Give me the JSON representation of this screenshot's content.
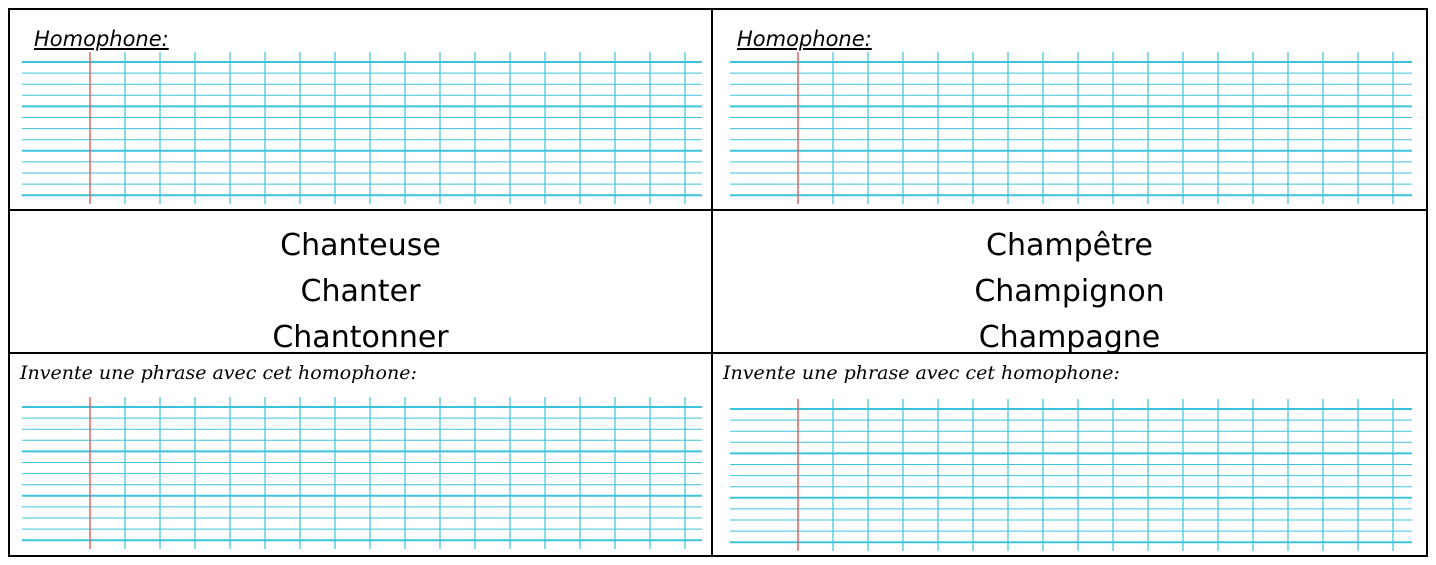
{
  "left_column": {
    "homophone_label": "Homophone:",
    "words": [
      "Chanteuse",
      "Chanter",
      "Chantonner"
    ],
    "phrase_prompt": "Invente une phrase avec cet homophone:"
  },
  "right_column": {
    "homophone_label": "Homophone:",
    "words": [
      "Champêtre",
      "Champignon",
      "Champagne"
    ],
    "phrase_prompt": "Invente une phrase avec cet homophone:"
  },
  "colors": {
    "ruling_line": "#3cc3dc",
    "margin_line": "#e05a5a",
    "border": "#000000"
  }
}
